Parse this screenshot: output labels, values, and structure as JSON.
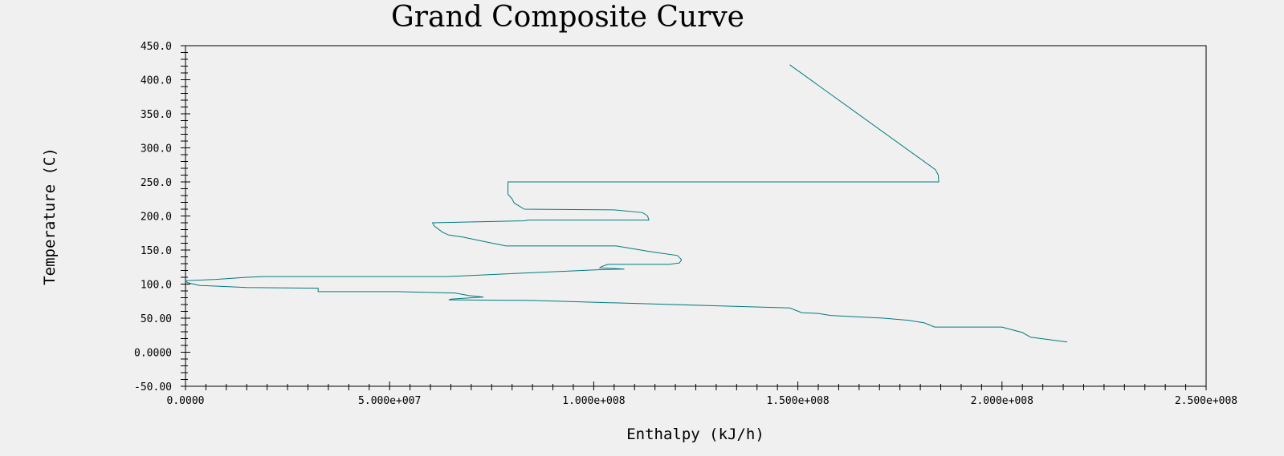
{
  "chart_data": {
    "type": "line",
    "title": "Grand Composite Curve",
    "xlabel": "Enthalpy (kJ/h)",
    "ylabel": "Temperature (C)",
    "xlim": [
      0,
      250000000
    ],
    "ylim": [
      -50,
      450
    ],
    "x_ticks": [
      0,
      50000000,
      100000000,
      150000000,
      200000000,
      250000000
    ],
    "x_tick_labels": [
      "0.0000",
      "5.000e+007",
      "1.000e+008",
      "1.500e+008",
      "2.000e+008",
      "2.500e+008"
    ],
    "y_ticks": [
      -50,
      0,
      50,
      100,
      150,
      200,
      250,
      300,
      350,
      400,
      450
    ],
    "y_tick_labels": [
      "-50.00",
      "0.0000",
      "50.00",
      "100.0",
      "150.0",
      "200.0",
      "250.0",
      "300.0",
      "350.0",
      "400.0",
      "450.0"
    ],
    "grid": false,
    "line_color": "#007b80",
    "series": [
      {
        "name": "",
        "points": [
          [
            148000000,
            422
          ],
          [
            183700000,
            268
          ],
          [
            184400000,
            260
          ],
          [
            184500000,
            250
          ],
          [
            153000000,
            250
          ],
          [
            79000000,
            250
          ],
          [
            79000000,
            232
          ],
          [
            80000000,
            225
          ],
          [
            80500000,
            219
          ],
          [
            83000000,
            210
          ],
          [
            105000000,
            209
          ],
          [
            112000000,
            205
          ],
          [
            113200000,
            200
          ],
          [
            113500000,
            194
          ],
          [
            84000000,
            194
          ],
          [
            83000000,
            193
          ],
          [
            60500000,
            190
          ],
          [
            61000000,
            185
          ],
          [
            63000000,
            176
          ],
          [
            64500000,
            172
          ],
          [
            68000000,
            169
          ],
          [
            73500000,
            162
          ],
          [
            78500000,
            156
          ],
          [
            105500000,
            156
          ],
          [
            114500000,
            147
          ],
          [
            120500000,
            142
          ],
          [
            121500000,
            136
          ],
          [
            121000000,
            131
          ],
          [
            118500000,
            129
          ],
          [
            103500000,
            129
          ],
          [
            102000000,
            126
          ],
          [
            101500000,
            124
          ],
          [
            107500000,
            122
          ],
          [
            101000000,
            121
          ],
          [
            64000000,
            111
          ],
          [
            19000000,
            111
          ],
          [
            15000000,
            110
          ],
          [
            7500000,
            107
          ],
          [
            0,
            105
          ],
          [
            500000,
            102
          ],
          [
            3500000,
            98
          ],
          [
            15000000,
            95
          ],
          [
            32500000,
            94
          ],
          [
            32500000,
            89
          ],
          [
            52000000,
            89
          ],
          [
            66000000,
            87
          ],
          [
            69500000,
            83
          ],
          [
            73000000,
            81
          ],
          [
            65000000,
            78
          ],
          [
            64500000,
            77
          ],
          [
            85000000,
            76
          ],
          [
            148000000,
            65
          ],
          [
            151000000,
            58
          ],
          [
            155000000,
            57
          ],
          [
            158000000,
            54
          ],
          [
            164000000,
            52
          ],
          [
            171000000,
            50
          ],
          [
            177000000,
            47
          ],
          [
            181000000,
            43
          ],
          [
            183500000,
            37
          ],
          [
            200000000,
            37
          ],
          [
            205000000,
            29
          ],
          [
            207000000,
            22
          ],
          [
            216000000,
            15
          ]
        ]
      }
    ]
  }
}
